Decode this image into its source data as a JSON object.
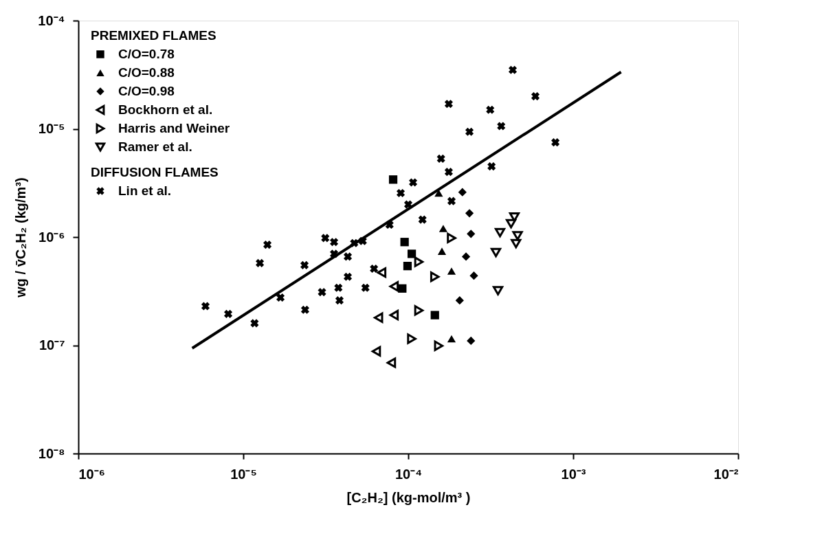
{
  "chart_data": {
    "type": "scatter",
    "xlabel": "[C₂H₂]  (kg-mol/m³ )",
    "ylabel": "wg / v̄C₂H₂  (kg/m³)",
    "legend_title": "PREMIXED FLAMES",
    "annotations": [
      "DIFFUSION FLAMES"
    ],
    "log": "xy",
    "grid": false,
    "legend": "top left",
    "xlim": [
      1e-06,
      0.01
    ],
    "ylim": [
      1e-08,
      0.0001
    ],
    "xticks": [
      {
        "value": 1e-06,
        "label": "10⁻⁶"
      },
      {
        "value": 1e-05,
        "label": "10⁻⁵"
      },
      {
        "value": 0.0001,
        "label": "10⁻⁴"
      },
      {
        "value": 0.001,
        "label": "10⁻³"
      },
      {
        "value": 0.01,
        "label": "10⁻²"
      }
    ],
    "yticks": [
      {
        "value": 1e-08,
        "label": "10⁻⁸"
      },
      {
        "value": 1e-07,
        "label": "10⁻⁷"
      },
      {
        "value": 1e-06,
        "label": "10⁻⁶"
      },
      {
        "value": 1e-05,
        "label": "10⁻⁵"
      },
      {
        "value": 0.0001,
        "label": "10⁻⁴"
      }
    ],
    "series": [
      {
        "name": "C/O=0.78",
        "type": "scatter",
        "marker": "square",
        "color": "#000000",
        "x": [
          8.1e-05,
          9.5e-05,
          0.000105,
          9.9e-05,
          9.2e-05,
          0.000145
        ],
        "values": [
          3.4e-06,
          9e-07,
          7e-07,
          5.4e-07,
          3.35e-07,
          1.9e-07
        ]
      },
      {
        "name": "C/O=0.88",
        "type": "scatter",
        "marker": "triangle-up",
        "color": "#000000",
        "x": [
          0.000153,
          0.000163,
          0.00016,
          0.000183,
          0.000183
        ],
        "values": [
          2.55e-06,
          1.2e-06,
          7.4e-07,
          4.85e-07,
          1.15e-07
        ]
      },
      {
        "name": "C/O=0.98",
        "type": "scatter",
        "marker": "diamond",
        "color": "#000000",
        "x": [
          0.000213,
          0.000235,
          0.00024,
          0.000224,
          0.00025,
          0.000205,
          0.00024
        ],
        "values": [
          2.6e-06,
          1.66e-06,
          1.07e-06,
          6.6e-07,
          4.4e-07,
          2.6e-07,
          1.1e-07
        ]
      },
      {
        "name": "Bockhorn et al.",
        "type": "scatter",
        "marker": "triangle-left",
        "color": "#000000",
        "x": [
          6.9e-05,
          8.2e-05,
          6.6e-05,
          8.2e-05,
          6.4e-05,
          7.9e-05
        ],
        "values": [
          4.7e-07,
          3.5e-07,
          1.8e-07,
          1.9e-07,
          8.8e-08,
          6.9e-08
        ]
      },
      {
        "name": "Harris and Weiner",
        "type": "scatter",
        "marker": "triangle-right",
        "color": "#000000",
        "x": [
          0.000183,
          0.000116,
          0.000145,
          0.000116,
          0.000105,
          0.000153
        ],
        "values": [
          9.8e-07,
          5.9e-07,
          4.3e-07,
          2.1e-07,
          1.15e-07,
          9.9e-08
        ]
      },
      {
        "name": "Ramer et al.",
        "type": "scatter",
        "marker": "triangle-down",
        "color": "#000000",
        "x": [
          0.00044,
          0.00042,
          0.00036,
          0.00046,
          0.00045,
          0.00034,
          0.00035
        ],
        "values": [
          1.53e-06,
          1.33e-06,
          1.1e-06,
          1.03e-06,
          8.7e-07,
          7.2e-07,
          3.2e-07
        ]
      },
      {
        "name": "Lin et al.",
        "type": "scatter",
        "marker": "cross",
        "color": "#000000",
        "x": [
          5.9e-06,
          8.1e-06,
          1.17e-05,
          1.4e-05,
          1.26e-05,
          1.68e-05,
          2.37e-05,
          2.35e-05,
          3e-05,
          3.14e-05,
          3.55e-05,
          3.83e-05,
          3.77e-05,
          3.55e-05,
          4.3e-05,
          4.3e-05,
          4.7e-05,
          5.5e-05,
          5.3e-05,
          6.2e-05,
          7.7e-05,
          9e-05,
          0.000107,
          0.0001,
          0.000122,
          0.000158,
          0.000176,
          0.000176,
          0.000183,
          0.000235,
          0.000314,
          0.00032,
          0.000366,
          0.00043,
          0.00059,
          0.00078
        ],
        "values": [
          2.3e-07,
          1.95e-07,
          1.6e-07,
          8.5e-07,
          5.75e-07,
          2.76e-07,
          2.13e-07,
          5.5e-07,
          3.1e-07,
          9.8e-07,
          9e-07,
          2.6e-07,
          3.4e-07,
          7e-07,
          6.6e-07,
          4.3e-07,
          8.8e-07,
          3.4e-07,
          9.2e-07,
          5.1e-07,
          1.3e-06,
          2.55e-06,
          3.2e-06,
          2e-06,
          1.45e-06,
          5.3e-06,
          4e-06,
          1.7e-05,
          2.15e-06,
          9.4e-06,
          1.5e-05,
          4.5e-06,
          1.06e-05,
          3.5e-05,
          2e-05,
          7.5e-06
        ]
      },
      {
        "type": "line",
        "color": "#000000",
        "x": [
          4.9e-06,
          0.00195
        ],
        "values": [
          9.4e-08,
          3.35e-05
        ]
      }
    ]
  }
}
